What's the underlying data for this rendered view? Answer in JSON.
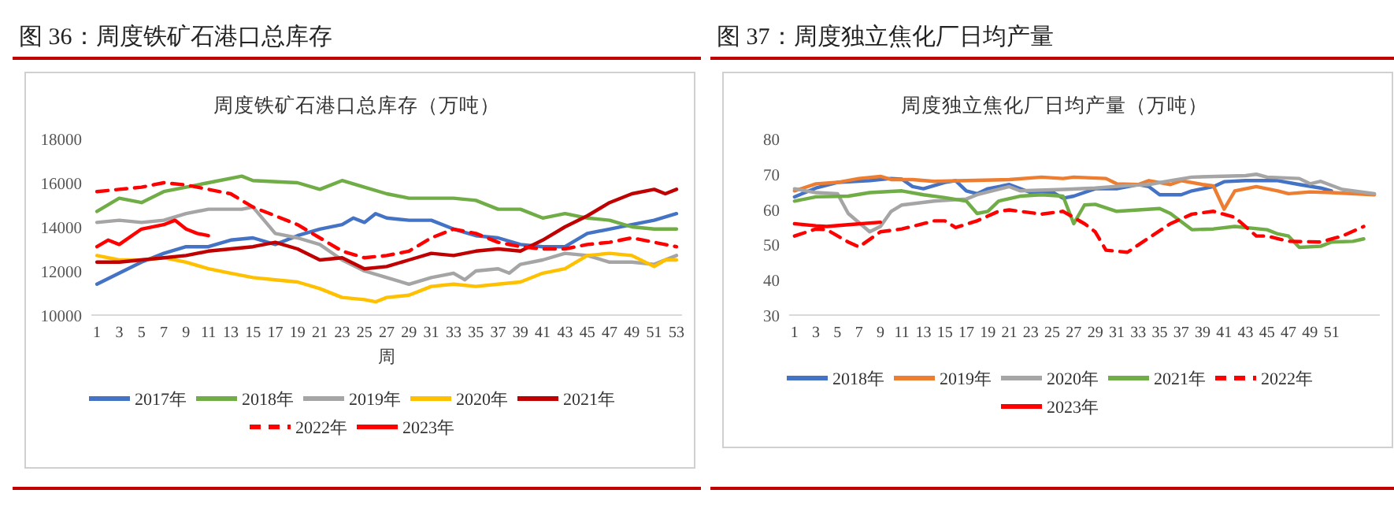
{
  "chart_data": [
    {
      "type": "line",
      "title": "图 36：周度铁矿石港口总库存",
      "subtitle": "周度铁矿石港口总库存（万吨）",
      "xlabel": "周",
      "xlim": [
        0.5,
        53.5
      ],
      "xticks": [
        1,
        3,
        5,
        7,
        9,
        11,
        13,
        15,
        17,
        19,
        21,
        23,
        25,
        27,
        29,
        31,
        33,
        35,
        37,
        39,
        41,
        43,
        45,
        47,
        49,
        51,
        53
      ],
      "ylim": [
        10000,
        18000
      ],
      "yticks": [
        10000,
        12000,
        14000,
        16000,
        18000
      ],
      "grid": false,
      "legend": "bottom",
      "marker": "none",
      "series": [
        {
          "name": "2017年",
          "color": "#4472c4",
          "line_style": "solid",
          "x": [
            1,
            3,
            5,
            7,
            9,
            11,
            13,
            15,
            17,
            19,
            21,
            23,
            24,
            25,
            26,
            27,
            29,
            31,
            33,
            35,
            37,
            39,
            41,
            43,
            45,
            47,
            49,
            51,
            53
          ],
          "values": [
            11400,
            11900,
            12400,
            12800,
            13100,
            13100,
            13400,
            13500,
            13200,
            13600,
            13900,
            14100,
            14400,
            14200,
            14600,
            14400,
            14300,
            14300,
            13900,
            13600,
            13500,
            13200,
            13100,
            13100,
            13700,
            13900,
            14100,
            14300,
            14600
          ]
        },
        {
          "name": "2018年",
          "color": "#70ad47",
          "line_style": "solid",
          "x": [
            1,
            3,
            5,
            7,
            9,
            11,
            14,
            15,
            19,
            21,
            23,
            25,
            27,
            29,
            33,
            35,
            37,
            39,
            41,
            43,
            45,
            47,
            49,
            51,
            53
          ],
          "values": [
            14700,
            15300,
            15100,
            15600,
            15800,
            16000,
            16300,
            16100,
            16000,
            15700,
            16100,
            15800,
            15500,
            15300,
            15300,
            15200,
            14800,
            14800,
            14400,
            14600,
            14400,
            14300,
            14000,
            13900,
            13900
          ]
        },
        {
          "name": "2019年",
          "color": "#a5a5a5",
          "line_style": "solid",
          "x": [
            1,
            3,
            5,
            7,
            9,
            11,
            13,
            14,
            15,
            16,
            17,
            19,
            21,
            23,
            25,
            27,
            29,
            31,
            33,
            34,
            35,
            37,
            38,
            39,
            41,
            43,
            45,
            47,
            49,
            51,
            53
          ],
          "values": [
            14200,
            14300,
            14200,
            14300,
            14600,
            14800,
            14800,
            14800,
            14900,
            14300,
            13700,
            13500,
            13200,
            12500,
            12000,
            11700,
            11400,
            11700,
            11900,
            11600,
            12000,
            12100,
            11900,
            12300,
            12500,
            12800,
            12700,
            12400,
            12400,
            12300,
            12700
          ]
        },
        {
          "name": "2020年",
          "color": "#ffc000",
          "line_style": "solid",
          "x": [
            1,
            3,
            5,
            7,
            9,
            11,
            13,
            15,
            17,
            19,
            21,
            23,
            25,
            26,
            27,
            29,
            31,
            33,
            35,
            37,
            39,
            41,
            43,
            45,
            47,
            49,
            51,
            52,
            53
          ],
          "values": [
            12700,
            12500,
            12500,
            12600,
            12400,
            12100,
            11900,
            11700,
            11600,
            11500,
            11200,
            10800,
            10700,
            10600,
            10800,
            10900,
            11300,
            11400,
            11300,
            11400,
            11500,
            11900,
            12100,
            12700,
            12800,
            12700,
            12200,
            12500,
            12500
          ]
        },
        {
          "name": "2021年",
          "color": "#c00000",
          "line_style": "solid",
          "x": [
            1,
            3,
            5,
            7,
            9,
            11,
            13,
            15,
            17,
            19,
            21,
            23,
            25,
            27,
            29,
            31,
            33,
            35,
            37,
            39,
            41,
            43,
            45,
            47,
            49,
            51,
            52,
            53
          ],
          "values": [
            12400,
            12400,
            12500,
            12600,
            12700,
            12900,
            13000,
            13100,
            13300,
            13000,
            12500,
            12600,
            12100,
            12200,
            12500,
            12800,
            12700,
            12900,
            13000,
            12900,
            13400,
            14000,
            14500,
            15100,
            15500,
            15700,
            15500,
            15700
          ]
        },
        {
          "name": "2022年",
          "color": "#ff0000",
          "line_style": "dashed",
          "x": [
            1,
            3,
            5,
            7,
            9,
            11,
            13,
            15,
            17,
            19,
            21,
            23,
            25,
            27,
            29,
            31,
            33,
            35,
            37,
            39,
            41,
            43,
            45,
            47,
            49,
            51,
            53
          ],
          "values": [
            15600,
            15700,
            15800,
            16000,
            15900,
            15700,
            15500,
            14900,
            14500,
            14100,
            13500,
            12900,
            12600,
            12700,
            12900,
            13500,
            13900,
            13700,
            13300,
            13100,
            13000,
            13000,
            13200,
            13300,
            13500,
            13300,
            13100
          ]
        },
        {
          "name": "2023年",
          "color": "#ff0000",
          "line_style": "solid",
          "x": [
            1,
            2,
            3,
            5,
            7,
            8,
            9,
            10,
            11
          ],
          "values": [
            13100,
            13400,
            13200,
            13900,
            14100,
            14300,
            13900,
            13700,
            13600
          ]
        }
      ]
    },
    {
      "type": "line",
      "title": "图 37：周度独立焦化厂日均产量",
      "subtitle": "周度独立焦化厂日均产量（万吨）",
      "xlim": [
        0.5,
        55.5
      ],
      "xticks": [
        1,
        3,
        5,
        7,
        9,
        11,
        13,
        15,
        17,
        19,
        21,
        23,
        25,
        27,
        29,
        31,
        33,
        35,
        37,
        39,
        41,
        43,
        45,
        47,
        49,
        51
      ],
      "ylim": [
        30,
        80
      ],
      "yticks": [
        30,
        40,
        50,
        60,
        70,
        80
      ],
      "grid": false,
      "legend": "bottom",
      "marker": "none",
      "series": [
        {
          "name": "2018年",
          "color": "#4472c4",
          "line_style": "solid",
          "x": [
            1,
            3,
            5,
            8,
            10,
            11,
            12,
            13,
            15,
            16,
            17,
            18,
            19,
            21,
            23,
            25,
            26,
            27,
            29,
            31,
            33,
            34,
            35,
            37,
            38,
            40,
            41,
            43,
            46,
            48,
            50,
            51
          ],
          "values": [
            63.5,
            66,
            67.6,
            68.1,
            68.7,
            68.5,
            66.4,
            65.8,
            67.6,
            68.1,
            65.2,
            64.4,
            65.8,
            67,
            64.7,
            64.9,
            63.1,
            63.7,
            65.8,
            65.8,
            67,
            66.4,
            64.1,
            64.1,
            65.2,
            66.4,
            67.8,
            68.1,
            68.1,
            67,
            66,
            65.2
          ]
        },
        {
          "name": "2019年",
          "color": "#ed7d31",
          "line_style": "solid",
          "x": [
            1,
            3,
            5,
            7,
            9,
            10,
            12,
            14,
            17,
            21,
            24,
            26,
            27,
            30,
            31,
            33,
            34,
            36,
            37,
            39,
            40,
            41,
            42,
            44,
            46,
            47,
            49,
            51,
            55
          ],
          "values": [
            65.2,
            67.2,
            67.6,
            68.7,
            69.3,
            68.4,
            68.4,
            67.9,
            68.1,
            68.4,
            69.1,
            68.7,
            69.1,
            68.7,
            67.2,
            67,
            68.1,
            67,
            68.1,
            67,
            66.6,
            60,
            65.2,
            66.4,
            65.2,
            64.4,
            64.9,
            64.7,
            64.1
          ]
        },
        {
          "name": "2020年",
          "color": "#a5a5a5",
          "line_style": "solid",
          "x": [
            1,
            3,
            5,
            6,
            8,
            9,
            10,
            11,
            14,
            17,
            18,
            21,
            22,
            26,
            29,
            32,
            34,
            36,
            38,
            43,
            44,
            45,
            48,
            49,
            50,
            52,
            55
          ],
          "values": [
            65.8,
            64.7,
            64.4,
            58.8,
            53.6,
            55.1,
            59.4,
            61.2,
            62.3,
            62.9,
            64.1,
            66.4,
            65.2,
            65.6,
            66,
            66.7,
            67,
            68.1,
            69.1,
            69.5,
            69.9,
            69.1,
            68.7,
            67.2,
            67.9,
            65.6,
            64.4
          ]
        },
        {
          "name": "2021年",
          "color": "#70ad47",
          "line_style": "solid",
          "x": [
            1,
            3,
            6,
            8,
            11,
            13,
            15,
            17,
            18,
            19,
            20,
            22,
            24,
            26,
            27,
            28,
            29,
            31,
            35,
            36,
            38,
            40,
            42,
            45,
            46,
            47,
            48,
            50,
            51,
            53,
            54
          ],
          "values": [
            62.3,
            63.5,
            63.7,
            64.7,
            65.2,
            64.1,
            63.3,
            62.3,
            58.8,
            59.4,
            62.3,
            63.7,
            64.1,
            63.7,
            55.9,
            61.2,
            61.4,
            59.4,
            60.2,
            58.8,
            54.2,
            54.4,
            55.1,
            54.2,
            53,
            52.4,
            49.2,
            49.5,
            50.7,
            50.9,
            51.6
          ]
        },
        {
          "name": "2022年",
          "color": "#ff0000",
          "line_style": "dashed",
          "x": [
            1,
            3,
            4,
            6,
            7,
            9,
            11,
            13,
            14,
            15,
            16,
            18,
            20,
            21,
            24,
            26,
            28,
            29,
            30,
            32,
            34,
            36,
            38,
            40,
            42,
            44,
            45,
            47,
            50,
            52,
            54
          ],
          "values": [
            52.4,
            54.4,
            54.2,
            50.7,
            49.3,
            53.6,
            54.4,
            55.9,
            56.7,
            56.7,
            54.8,
            56.7,
            59.4,
            59.8,
            58.6,
            59.4,
            55.9,
            53.6,
            48.4,
            47.8,
            51.9,
            55.9,
            58.6,
            59.4,
            57.7,
            52.4,
            52.4,
            50.9,
            50.7,
            52.4,
            55.1
          ]
        },
        {
          "name": "2023年",
          "color": "#ff0000",
          "line_style": "solid",
          "x": [
            1,
            3,
            4,
            6,
            9
          ],
          "values": [
            55.9,
            55.3,
            55.1,
            55.6,
            56.3
          ]
        }
      ]
    }
  ]
}
